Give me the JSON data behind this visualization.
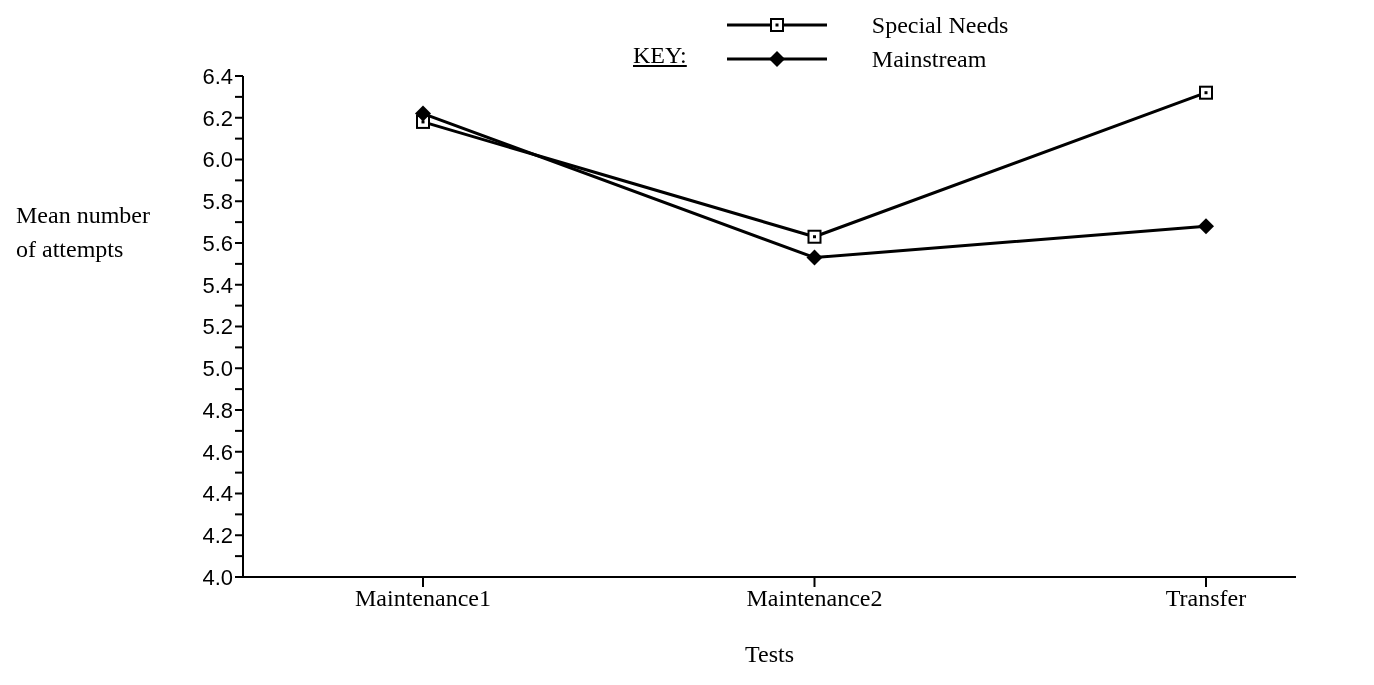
{
  "chart_data": {
    "type": "line",
    "xlabel": "Tests",
    "ylabel": "Mean number of attempts",
    "legend_title": "KEY:",
    "legend": "top",
    "categories": [
      "Maintenance1",
      "Maintenance2",
      "Transfer"
    ],
    "series": [
      {
        "name": "Special Needs",
        "color": "#000000",
        "marker": "square",
        "values": [
          6.18,
          5.63,
          6.32
        ]
      },
      {
        "name": "Mainstream",
        "color": "#000000",
        "marker": "diamond",
        "values": [
          6.22,
          5.53,
          5.68
        ]
      }
    ],
    "ylim": [
      4.0,
      6.4
    ],
    "yticks": [
      {
        "value": 4.0,
        "label": "4.0"
      },
      {
        "value": 4.1,
        "label": null
      },
      {
        "value": 4.2,
        "label": "4.2"
      },
      {
        "value": 4.3,
        "label": null
      },
      {
        "value": 4.4,
        "label": "4.4"
      },
      {
        "value": 4.5,
        "label": null
      },
      {
        "value": 4.6,
        "label": "4.6"
      },
      {
        "value": 4.7,
        "label": null
      },
      {
        "value": 4.8,
        "label": "4.8"
      },
      {
        "value": 4.9,
        "label": null
      },
      {
        "value": 5.0,
        "label": "5.0"
      },
      {
        "value": 5.1,
        "label": null
      },
      {
        "value": 5.2,
        "label": "5.2"
      },
      {
        "value": 5.3,
        "label": null
      },
      {
        "value": 5.4,
        "label": "5.4"
      },
      {
        "value": 5.5,
        "label": null
      },
      {
        "value": 5.6,
        "label": "5.6"
      },
      {
        "value": 5.7,
        "label": null
      },
      {
        "value": 5.8,
        "label": "5.8"
      },
      {
        "value": 5.9,
        "label": null
      },
      {
        "value": 6.0,
        "label": "6.0"
      },
      {
        "value": 6.1,
        "label": null
      },
      {
        "value": 6.2,
        "label": "6.2"
      },
      {
        "value": 6.3,
        "label": null
      },
      {
        "value": 6.4,
        "label": "6.4"
      }
    ],
    "grid": false,
    "line_style": "solid"
  }
}
